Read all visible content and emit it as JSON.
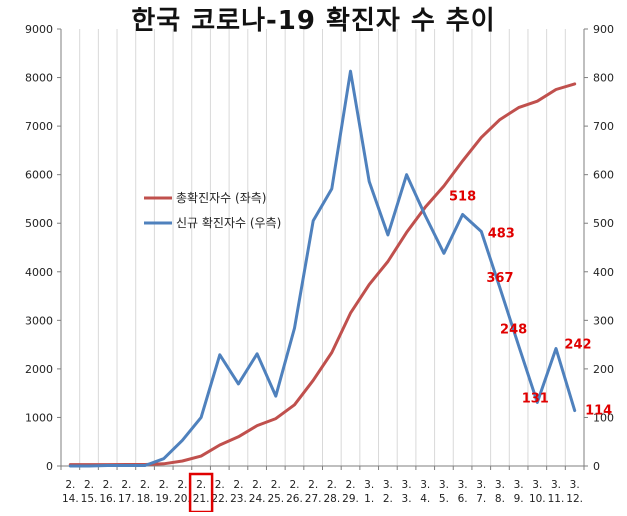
{
  "chart_data": {
    "type": "line",
    "title": "한국 코로나-19 확진자 수 추이",
    "categories": [
      "2.\n14.",
      "2.\n15.",
      "2.\n16.",
      "2.\n17.",
      "2.\n18.",
      "2.\n19.",
      "2.\n20.",
      "2.\n21.",
      "2.\n22.",
      "2.\n23.",
      "2.\n24.",
      "2.\n25.",
      "2.\n26.",
      "2.\n27.",
      "2.\n28.",
      "2.\n29.",
      "3.\n1.",
      "3.\n2.",
      "3.\n3.",
      "3.\n4.",
      "3.\n5.",
      "3.\n6.",
      "3.\n7.",
      "3.\n8.",
      "3.\n9.",
      "3.\n10.",
      "3.\n11.",
      "3.\n12."
    ],
    "y_left": {
      "min": 0,
      "max": 9000,
      "step": 1000,
      "ticks": [
        "0",
        "1000",
        "2000",
        "3000",
        "4000",
        "5000",
        "6000",
        "7000",
        "8000",
        "9000"
      ]
    },
    "y_right": {
      "min": 0,
      "max": 900,
      "step": 100,
      "ticks": [
        "0",
        "100",
        "200",
        "300",
        "400",
        "500",
        "600",
        "700",
        "800",
        "900"
      ]
    },
    "grid": {
      "vertical": true,
      "horizontal": false
    },
    "legend": {
      "position": "center-left"
    },
    "highlighted_category_index": 7,
    "series": [
      {
        "name": "총확진자수 (좌측)",
        "axis": "left",
        "color": "#c0504d",
        "values": [
          28,
          28,
          29,
          30,
          31,
          46,
          104,
          204,
          433,
          602,
          833,
          977,
          1261,
          1766,
          2337,
          3150,
          3736,
          4212,
          4812,
          5328,
          5766,
          6284,
          6767,
          7134,
          7382,
          7513,
          7755,
          7869
        ]
      },
      {
        "name": "신규 확진자수 (우측)",
        "axis": "right",
        "color": "#4f81bd",
        "values": [
          0,
          0,
          1,
          1,
          1,
          15,
          53,
          100,
          229,
          169,
          231,
          144,
          284,
          505,
          571,
          813,
          586,
          476,
          600,
          516,
          438,
          518,
          483,
          367,
          248,
          131,
          242,
          114
        ]
      }
    ],
    "annotations": [
      {
        "index": 21,
        "text": "518"
      },
      {
        "index": 22,
        "text": "483"
      },
      {
        "index": 23,
        "text": "367"
      },
      {
        "index": 24,
        "text": "248"
      },
      {
        "index": 25,
        "text": "131"
      },
      {
        "index": 26,
        "text": "242"
      },
      {
        "index": 27,
        "text": "114"
      }
    ],
    "annotation_color": "#e00000",
    "highlight_color": "#e00000"
  }
}
